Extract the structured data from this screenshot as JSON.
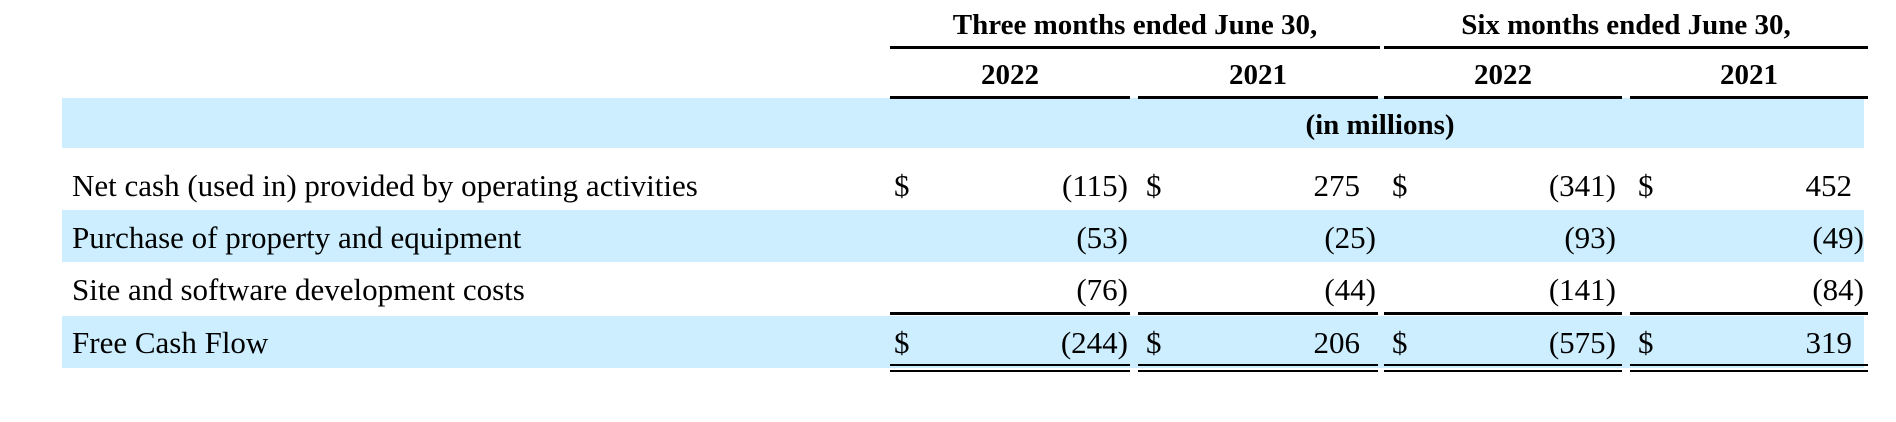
{
  "header": {
    "groups": [
      "Three months ended June 30,",
      "Six months ended June 30,"
    ],
    "years": [
      "2022",
      "2021",
      "2022",
      "2021"
    ],
    "unit_note": "(in millions)"
  },
  "currency_symbol": "$",
  "rows": [
    {
      "label": "Net cash (used in) provided by operating activities",
      "values": [
        "(115)",
        "275",
        "(341)",
        "452"
      ]
    },
    {
      "label": "Purchase of property and equipment",
      "values": [
        "(53)",
        "(25)",
        "(93)",
        "(49)"
      ]
    },
    {
      "label": "Site and software development costs",
      "values": [
        "(76)",
        "(44)",
        "(141)",
        "(84)"
      ]
    },
    {
      "label": "Free Cash Flow",
      "values": [
        "(244)",
        "206",
        "(575)",
        "319"
      ]
    }
  ],
  "colors": {
    "band": "#cceeff",
    "text": "#000000",
    "rule": "#000000"
  }
}
